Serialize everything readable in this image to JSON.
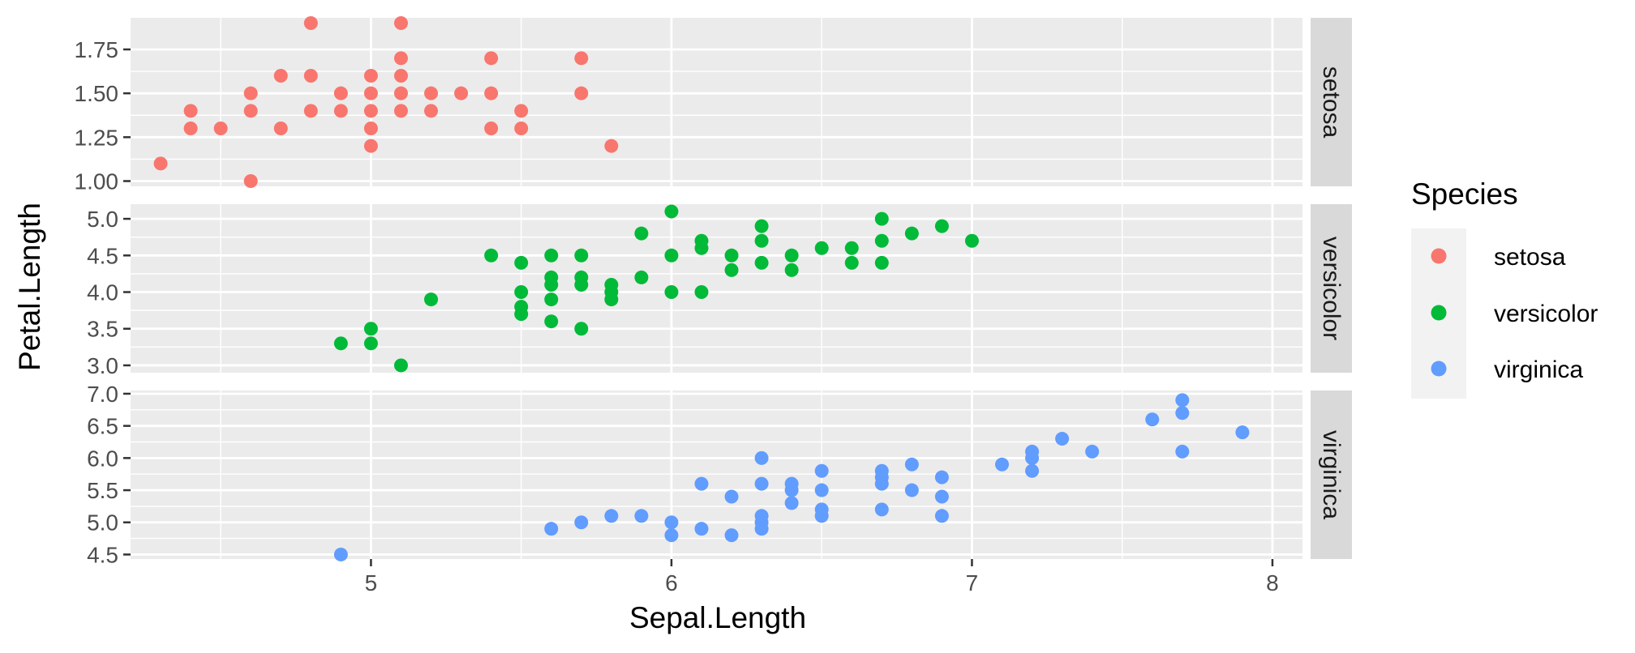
{
  "chart_data": {
    "type": "scatter",
    "xlabel": "Sepal.Length",
    "ylabel": "Petal.Length",
    "xlim": [
      4.2,
      8.1
    ],
    "x_ticks": [
      5,
      6,
      7,
      8
    ],
    "x_minor": [
      4.5,
      5.5,
      6.5,
      7.5
    ],
    "legend": {
      "title": "Species",
      "position": "right",
      "entries": [
        "setosa",
        "versicolor",
        "virginica"
      ]
    },
    "grid": true,
    "facets": [
      {
        "strip": "setosa",
        "color": "#F8766D",
        "ylim": [
          0.97,
          1.93
        ],
        "y_ticks": [
          1.0,
          1.25,
          1.5,
          1.75
        ],
        "y_tick_labels": [
          "1.00",
          "1.25",
          "1.50",
          "1.75"
        ],
        "points": [
          [
            4.3,
            1.1
          ],
          [
            4.4,
            1.3
          ],
          [
            4.4,
            1.4
          ],
          [
            4.5,
            1.3
          ],
          [
            4.6,
            1.0
          ],
          [
            4.6,
            1.4
          ],
          [
            4.6,
            1.5
          ],
          [
            4.7,
            1.3
          ],
          [
            4.7,
            1.6
          ],
          [
            4.8,
            1.4
          ],
          [
            4.8,
            1.6
          ],
          [
            4.8,
            1.9
          ],
          [
            4.9,
            1.4
          ],
          [
            4.9,
            1.5
          ],
          [
            5.0,
            1.2
          ],
          [
            5.0,
            1.3
          ],
          [
            5.0,
            1.4
          ],
          [
            5.0,
            1.5
          ],
          [
            5.0,
            1.6
          ],
          [
            5.1,
            1.4
          ],
          [
            5.1,
            1.5
          ],
          [
            5.1,
            1.6
          ],
          [
            5.1,
            1.7
          ],
          [
            5.1,
            1.9
          ],
          [
            5.2,
            1.4
          ],
          [
            5.2,
            1.5
          ],
          [
            5.3,
            1.5
          ],
          [
            5.4,
            1.3
          ],
          [
            5.4,
            1.5
          ],
          [
            5.4,
            1.7
          ],
          [
            5.5,
            1.3
          ],
          [
            5.5,
            1.4
          ],
          [
            5.7,
            1.5
          ],
          [
            5.7,
            1.7
          ],
          [
            5.8,
            1.2
          ]
        ]
      },
      {
        "strip": "versicolor",
        "color": "#00BA38",
        "ylim": [
          2.9,
          5.2
        ],
        "y_ticks": [
          3.0,
          3.5,
          4.0,
          4.5,
          5.0
        ],
        "y_tick_labels": [
          "3.0",
          "3.5",
          "4.0",
          "4.5",
          "5.0"
        ],
        "points": [
          [
            4.9,
            3.3
          ],
          [
            5.0,
            3.3
          ],
          [
            5.0,
            3.5
          ],
          [
            5.1,
            3.0
          ],
          [
            5.2,
            3.9
          ],
          [
            5.4,
            4.5
          ],
          [
            5.5,
            3.7
          ],
          [
            5.5,
            3.8
          ],
          [
            5.5,
            4.0
          ],
          [
            5.5,
            4.4
          ],
          [
            5.6,
            3.6
          ],
          [
            5.6,
            3.9
          ],
          [
            5.6,
            4.1
          ],
          [
            5.6,
            4.2
          ],
          [
            5.6,
            4.5
          ],
          [
            5.7,
            3.5
          ],
          [
            5.7,
            4.1
          ],
          [
            5.7,
            4.2
          ],
          [
            5.7,
            4.5
          ],
          [
            5.8,
            3.9
          ],
          [
            5.8,
            4.0
          ],
          [
            5.8,
            4.1
          ],
          [
            5.9,
            4.2
          ],
          [
            5.9,
            4.8
          ],
          [
            6.0,
            4.0
          ],
          [
            6.0,
            4.5
          ],
          [
            6.0,
            5.1
          ],
          [
            6.1,
            4.0
          ],
          [
            6.1,
            4.6
          ],
          [
            6.1,
            4.7
          ],
          [
            6.2,
            4.3
          ],
          [
            6.2,
            4.5
          ],
          [
            6.3,
            4.4
          ],
          [
            6.3,
            4.7
          ],
          [
            6.3,
            4.9
          ],
          [
            6.4,
            4.3
          ],
          [
            6.4,
            4.5
          ],
          [
            6.5,
            4.6
          ],
          [
            6.6,
            4.4
          ],
          [
            6.6,
            4.6
          ],
          [
            6.7,
            4.4
          ],
          [
            6.7,
            4.7
          ],
          [
            6.7,
            5.0
          ],
          [
            6.8,
            4.8
          ],
          [
            6.9,
            4.9
          ],
          [
            7.0,
            4.7
          ]
        ]
      },
      {
        "strip": "virginica",
        "color": "#619CFF",
        "ylim": [
          4.43,
          7.05
        ],
        "y_ticks": [
          4.5,
          5.0,
          5.5,
          6.0,
          6.5,
          7.0
        ],
        "y_tick_labels": [
          "4.5",
          "5.0",
          "5.5",
          "6.0",
          "6.5",
          "7.0"
        ],
        "points": [
          [
            4.9,
            4.5
          ],
          [
            5.6,
            4.9
          ],
          [
            5.7,
            5.0
          ],
          [
            5.8,
            5.1
          ],
          [
            5.9,
            5.1
          ],
          [
            6.0,
            4.8
          ],
          [
            6.0,
            5.0
          ],
          [
            6.1,
            4.9
          ],
          [
            6.1,
            5.6
          ],
          [
            6.2,
            4.8
          ],
          [
            6.2,
            5.4
          ],
          [
            6.3,
            4.9
          ],
          [
            6.3,
            5.0
          ],
          [
            6.3,
            5.1
          ],
          [
            6.3,
            5.6
          ],
          [
            6.3,
            6.0
          ],
          [
            6.4,
            5.3
          ],
          [
            6.4,
            5.5
          ],
          [
            6.4,
            5.6
          ],
          [
            6.5,
            5.1
          ],
          [
            6.5,
            5.2
          ],
          [
            6.5,
            5.5
          ],
          [
            6.5,
            5.8
          ],
          [
            6.7,
            5.2
          ],
          [
            6.7,
            5.6
          ],
          [
            6.7,
            5.7
          ],
          [
            6.7,
            5.8
          ],
          [
            6.8,
            5.5
          ],
          [
            6.8,
            5.9
          ],
          [
            6.9,
            5.1
          ],
          [
            6.9,
            5.4
          ],
          [
            6.9,
            5.7
          ],
          [
            7.1,
            5.9
          ],
          [
            7.2,
            5.8
          ],
          [
            7.2,
            6.0
          ],
          [
            7.2,
            6.1
          ],
          [
            7.3,
            6.3
          ],
          [
            7.4,
            6.1
          ],
          [
            7.6,
            6.6
          ],
          [
            7.7,
            6.1
          ],
          [
            7.7,
            6.7
          ],
          [
            7.7,
            6.9
          ],
          [
            7.9,
            6.4
          ]
        ]
      }
    ]
  }
}
